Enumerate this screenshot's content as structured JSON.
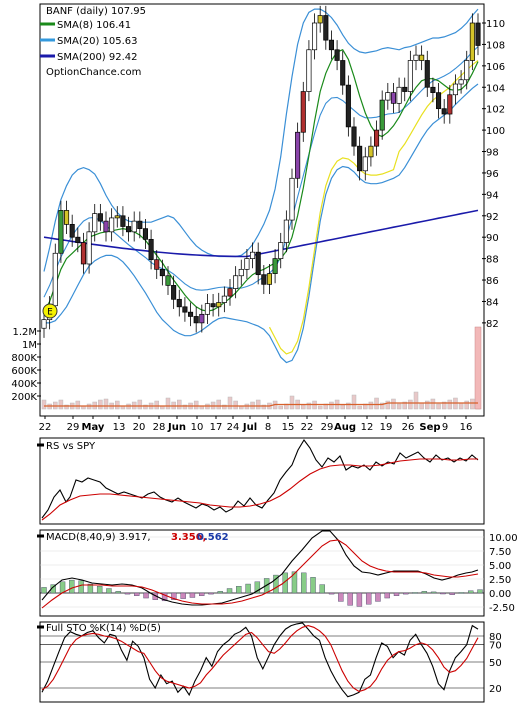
{
  "chart_data": [
    {
      "type": "candlestick",
      "title": "BANF (daily) 107.95",
      "legend": [
        {
          "label": "SMA(8) 106.41",
          "color": "#1a8a1a"
        },
        {
          "label": "SMA(20) 105.63",
          "color": "#3399dd"
        },
        {
          "label": "SMA(200) 92.42",
          "color": "#1a1aaa"
        }
      ],
      "watermark": "OptionChance.com",
      "ylim": [
        80,
        112
      ],
      "yticks": [
        "110",
        "108",
        "106",
        "104",
        "102",
        "100",
        "98",
        "96",
        "94",
        "92",
        "90",
        "88",
        "86",
        "84",
        "82"
      ],
      "volume_ticks": [
        "1.2M",
        "1M",
        "800K",
        "600K",
        "400K",
        "200K"
      ],
      "xticks": [
        "22",
        "29",
        "May",
        "13",
        "20",
        "28",
        "Jun",
        "10",
        "17",
        "24",
        "Jul",
        "8",
        "15",
        "22",
        "29",
        "Aug",
        "12",
        "19",
        "26",
        "Sep",
        "9",
        "16"
      ],
      "marker": "E",
      "closes": [
        82.3,
        83.6,
        88.5,
        92.5,
        91.2,
        90.0,
        89.5,
        87.5,
        90.5,
        92.2,
        91.5,
        90.5,
        91.8,
        92.0,
        91.0,
        90.5,
        91.5,
        90.8,
        89.8,
        87.9,
        87.0,
        86.4,
        85.5,
        84.2,
        83.5,
        83.0,
        82.6,
        82.0,
        82.8,
        83.8,
        83.5,
        83.9,
        84.5,
        85.2,
        86.4,
        87.0,
        88.0,
        88.6,
        86.5,
        85.6,
        86.6,
        88.0,
        89.5,
        91.6,
        95.5,
        99.8,
        103.6,
        107.5,
        110.0,
        110.7,
        108.4,
        107.5,
        106.5,
        104.2,
        100.3,
        98.5,
        96.2,
        97.5,
        98.5,
        100.0,
        102.8,
        103.5,
        102.5,
        104.0,
        103.6,
        106.5,
        107.0,
        106.5,
        104.0,
        103.5,
        102.0,
        101.5,
        103.3,
        104.3,
        104.7,
        106.5,
        110.0,
        107.9
      ],
      "sma8": [
        83.0,
        84.0,
        85.5,
        87.0,
        88.0,
        88.5,
        89.0,
        89.5,
        90.0,
        90.2,
        90.4,
        90.5,
        90.6,
        90.7,
        90.8,
        90.7,
        90.5,
        90.2,
        89.7,
        89.0,
        88.3,
        87.6,
        86.8,
        86.0,
        85.3,
        84.6,
        84.0,
        83.5,
        83.2,
        83.1,
        83.2,
        83.5,
        83.9,
        84.3,
        84.8,
        85.4,
        86.0,
        86.5,
        86.8,
        87.0,
        87.3,
        87.6,
        88.0,
        88.7,
        90.0,
        92.0,
        94.6,
        97.6,
        100.8,
        103.6,
        105.3,
        106.5,
        107.3,
        107.5,
        106.6,
        105.0,
        103.2,
        101.6,
        100.4,
        99.6,
        99.4,
        99.8,
        100.4,
        101.2,
        102.2,
        103.2,
        104.0,
        104.6,
        104.8,
        104.8,
        104.6,
        104.2,
        103.8,
        103.7,
        103.8,
        104.3,
        105.3,
        106.4
      ],
      "bb_upper": [
        86.8,
        89.0,
        91.5,
        93.5,
        94.8,
        95.8,
        96.3,
        96.5,
        96.3,
        95.9,
        95.0,
        93.9,
        93.0,
        92.3,
        91.8,
        91.5,
        91.4,
        91.4,
        91.4,
        91.4,
        91.6,
        91.8,
        92.0,
        91.8,
        91.2,
        90.5,
        89.8,
        89.2,
        88.8,
        88.5,
        88.3,
        88.2,
        88.2,
        88.2,
        88.2,
        88.3,
        88.7,
        89.3,
        90.2,
        91.2,
        92.5,
        94.5,
        97.5,
        101.5,
        105.0,
        108.0,
        110.0,
        111.0,
        111.3,
        111.3,
        111.0,
        110.5,
        109.8,
        108.9,
        108.1,
        107.6,
        107.3,
        107.2,
        107.3,
        107.4,
        107.6,
        107.7,
        107.6,
        107.5,
        107.7,
        107.8,
        108.0,
        108.2,
        108.4,
        108.6,
        108.6,
        108.7,
        108.9,
        109.1,
        109.5,
        110.0,
        110.7,
        111.3
      ],
      "bb_lower": [
        82.0,
        82.0,
        82.2,
        82.8,
        83.5,
        84.5,
        85.5,
        86.5,
        87.3,
        87.8,
        88.1,
        88.3,
        88.3,
        88.1,
        87.7,
        87.1,
        86.4,
        85.6,
        84.8,
        83.9,
        83.0,
        82.3,
        81.8,
        81.3,
        81.0,
        80.8,
        80.8,
        81.0,
        81.3,
        81.7,
        82.1,
        82.4,
        82.5,
        82.4,
        82.3,
        82.2,
        82.1,
        81.9,
        81.7,
        81.4,
        80.8,
        79.8,
        78.8,
        78.3,
        78.5,
        79.5,
        81.5,
        84.5,
        88.0,
        91.5,
        94.0,
        95.5,
        96.3,
        96.6,
        96.5,
        96.1,
        95.5,
        95.1,
        95.0,
        95.0,
        95.1,
        95.3,
        95.5,
        95.8,
        96.5,
        97.4,
        98.3,
        99.2,
        100.0,
        100.6,
        101.0,
        101.4,
        101.8,
        102.4,
        102.9,
        103.4,
        103.9,
        104.3
      ]
    },
    {
      "type": "line",
      "title": "RS vs SPY"
    },
    {
      "type": "line",
      "title": "MACD(8,40,9) 3.917,",
      "signal_label": "3.356,",
      "hist_label": "0.562",
      "yticks": [
        "10.00",
        "7.50",
        "5.00",
        "2.50",
        "0.00",
        "-2.50"
      ],
      "ylim": [
        -3.2,
        11.2
      ]
    },
    {
      "type": "line",
      "title": "Full STO %K(14) %D(5)",
      "yticks": [
        "80",
        "70",
        "50",
        "20"
      ],
      "ylim": [
        5,
        95
      ],
      "k": [
        15,
        28,
        45,
        62,
        78,
        85,
        82,
        80,
        84,
        86,
        78,
        72,
        82,
        80,
        64,
        52,
        74,
        68,
        55,
        30,
        20,
        35,
        25,
        28,
        15,
        22,
        12,
        28,
        40,
        55,
        45,
        62,
        70,
        75,
        82,
        85,
        90,
        80,
        55,
        42,
        56,
        70,
        80,
        88,
        92,
        94,
        95,
        88,
        80,
        75,
        55,
        40,
        28,
        18,
        10,
        12,
        15,
        30,
        35,
        55,
        72,
        68,
        55,
        62,
        58,
        75,
        82,
        70,
        60,
        45,
        25,
        18,
        40,
        55,
        62,
        70,
        92,
        88
      ],
      "d": [
        18,
        22,
        30,
        42,
        55,
        68,
        76,
        80,
        82,
        83,
        82,
        80,
        79,
        77,
        74,
        70,
        66,
        62,
        60,
        50,
        40,
        32,
        28,
        26,
        24,
        22,
        20,
        22,
        26,
        35,
        42,
        50,
        58,
        64,
        70,
        76,
        82,
        84,
        78,
        70,
        62,
        60,
        65,
        72,
        80,
        86,
        90,
        92,
        90,
        86,
        80,
        70,
        55,
        40,
        28,
        20,
        16,
        18,
        22,
        30,
        42,
        52,
        58,
        62,
        63,
        66,
        70,
        72,
        70,
        64,
        55,
        44,
        38,
        40,
        46,
        54,
        66,
        78
      ]
    }
  ]
}
